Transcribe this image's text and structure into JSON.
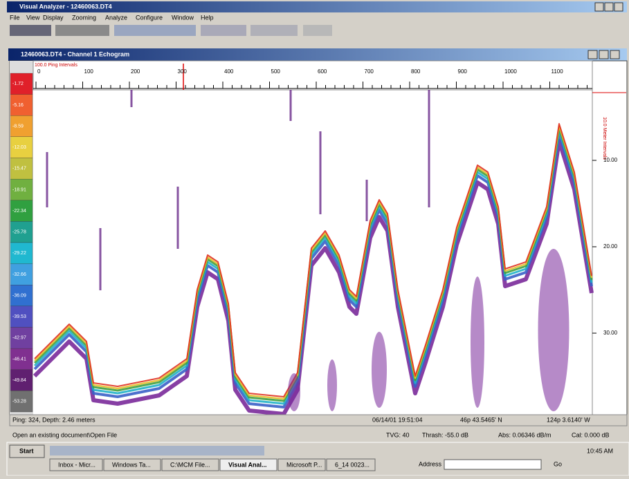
{
  "window": {
    "title": "Visual Analyzer - 12460063.DT4",
    "menu": [
      "File",
      "View",
      "Display",
      "Zooming",
      "Analyze",
      "Configure",
      "Window",
      "Help"
    ]
  },
  "echogram": {
    "title": "12460063.DT4 - Channel 1 Echogram",
    "ping_axis_label": "100.0 Ping Intervals",
    "ping_ticks": [
      0,
      100,
      200,
      300,
      400,
      500,
      600,
      700,
      800,
      900,
      1000,
      1100
    ],
    "depth_axis_label": "10.0 Meter Intervals",
    "depth_ticks": [
      {
        "value": 10,
        "label": "10.00"
      },
      {
        "value": 20,
        "label": "20.00"
      },
      {
        "value": 30,
        "label": "30.00"
      }
    ],
    "color_scale": [
      -1.72,
      -5.16,
      -8.59,
      -12.03,
      -15.47,
      -18.91,
      -22.34,
      -25.78,
      -29.22,
      -32.66,
      -36.09,
      -39.53,
      -42.97,
      -46.41,
      -49.84,
      -53.28
    ]
  },
  "status": {
    "ping": "Ping: 324, Depth: 2.46 meters",
    "datetime": "06/14/01 19:51:04",
    "latitude": "46p 43.5465' N",
    "longitude": "124p 3.6140' W",
    "message": "Open an existing document\\Open File",
    "tvg": "TVG: 40",
    "thresh": "Thrash: -55.0 dB",
    "abs": "Abs: 0.06346 dB/m",
    "cal": "Cal: 0.000 dB"
  },
  "taskbar": {
    "start": "Start",
    "buttons": [
      "Inbox - Micr...",
      "Windows Ta...",
      "C:\\MCM File...",
      "Visual Anal...",
      "Microsoft P...",
      "6_14 0023..."
    ],
    "address": "Address",
    "go": "Go",
    "clock": "10:45 AM"
  }
}
